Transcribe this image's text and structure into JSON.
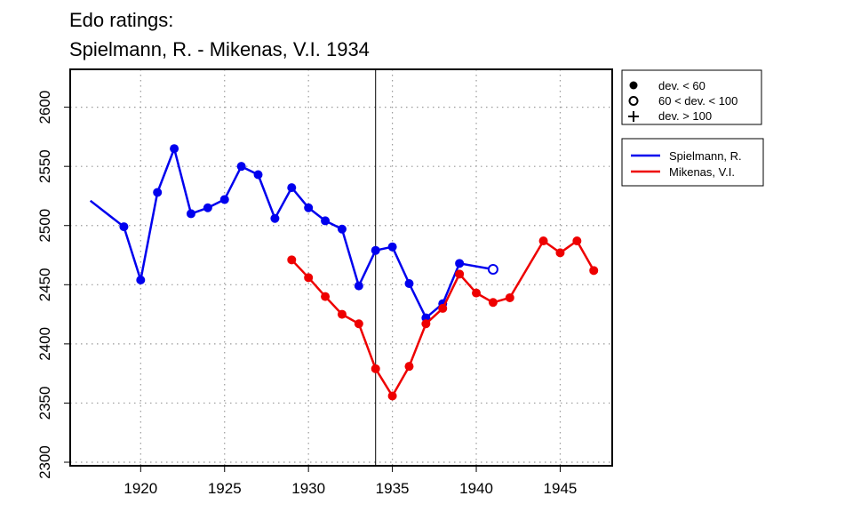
{
  "chart_data": {
    "type": "line",
    "title": [
      "Edo ratings:",
      "Spielmann, R. - Mikenas, V.I. 1934"
    ],
    "xlabel": "",
    "ylabel": "",
    "xlim": [
      1915.8,
      1948.1
    ],
    "ylim": [
      2297,
      2632
    ],
    "xticks": [
      1920,
      1925,
      1930,
      1935,
      1940,
      1945
    ],
    "yticks": [
      2300,
      2350,
      2400,
      2450,
      2500,
      2550,
      2600
    ],
    "grid": "dotted",
    "vline_x": 1934,
    "legend_symbols": {
      "position": "top-right",
      "entries": [
        {
          "symbol": "filled-circle",
          "label": "dev. < 60"
        },
        {
          "symbol": "open-circle",
          "label": "60 < dev. < 100"
        },
        {
          "symbol": "plus",
          "label": "dev. > 100"
        }
      ]
    },
    "legend_series_position": "right",
    "series": [
      {
        "name": "Spielmann, R.",
        "color": "#0000ee",
        "points": [
          {
            "x": 1917,
            "y": 2521,
            "marker": "none"
          },
          {
            "x": 1919,
            "y": 2499,
            "marker": "filled"
          },
          {
            "x": 1920,
            "y": 2454,
            "marker": "filled"
          },
          {
            "x": 1921,
            "y": 2528,
            "marker": "filled"
          },
          {
            "x": 1922,
            "y": 2565,
            "marker": "filled"
          },
          {
            "x": 1923,
            "y": 2510,
            "marker": "filled"
          },
          {
            "x": 1924,
            "y": 2515,
            "marker": "filled"
          },
          {
            "x": 1925,
            "y": 2522,
            "marker": "filled"
          },
          {
            "x": 1926,
            "y": 2550,
            "marker": "filled"
          },
          {
            "x": 1927,
            "y": 2543,
            "marker": "filled"
          },
          {
            "x": 1928,
            "y": 2506,
            "marker": "filled"
          },
          {
            "x": 1929,
            "y": 2532,
            "marker": "filled"
          },
          {
            "x": 1930,
            "y": 2515,
            "marker": "filled"
          },
          {
            "x": 1931,
            "y": 2504,
            "marker": "filled"
          },
          {
            "x": 1932,
            "y": 2497,
            "marker": "filled"
          },
          {
            "x": 1933,
            "y": 2449,
            "marker": "filled"
          },
          {
            "x": 1934,
            "y": 2479,
            "marker": "filled"
          },
          {
            "x": 1935,
            "y": 2482,
            "marker": "filled"
          },
          {
            "x": 1936,
            "y": 2451,
            "marker": "filled"
          },
          {
            "x": 1937,
            "y": 2422,
            "marker": "filled"
          },
          {
            "x": 1938,
            "y": 2434,
            "marker": "filled"
          },
          {
            "x": 1939,
            "y": 2468,
            "marker": "filled"
          },
          {
            "x": 1941,
            "y": 2463,
            "marker": "open"
          }
        ]
      },
      {
        "name": "Mikenas, V.I.",
        "color": "#ee0000",
        "points": [
          {
            "x": 1929,
            "y": 2471,
            "marker": "filled"
          },
          {
            "x": 1930,
            "y": 2456,
            "marker": "filled"
          },
          {
            "x": 1931,
            "y": 2440,
            "marker": "filled"
          },
          {
            "x": 1932,
            "y": 2425,
            "marker": "filled"
          },
          {
            "x": 1933,
            "y": 2417,
            "marker": "filled"
          },
          {
            "x": 1934,
            "y": 2379,
            "marker": "filled"
          },
          {
            "x": 1935,
            "y": 2356,
            "marker": "filled"
          },
          {
            "x": 1936,
            "y": 2381,
            "marker": "filled"
          },
          {
            "x": 1937,
            "y": 2417,
            "marker": "filled"
          },
          {
            "x": 1938,
            "y": 2430,
            "marker": "filled"
          },
          {
            "x": 1939,
            "y": 2459,
            "marker": "filled"
          },
          {
            "x": 1940,
            "y": 2443,
            "marker": "filled"
          },
          {
            "x": 1941,
            "y": 2435,
            "marker": "filled"
          },
          {
            "x": 1942,
            "y": 2439,
            "marker": "filled"
          },
          {
            "x": 1944,
            "y": 2487,
            "marker": "filled"
          },
          {
            "x": 1945,
            "y": 2477,
            "marker": "filled"
          },
          {
            "x": 1946,
            "y": 2487,
            "marker": "filled"
          },
          {
            "x": 1947,
            "y": 2462,
            "marker": "filled"
          }
        ]
      }
    ]
  }
}
